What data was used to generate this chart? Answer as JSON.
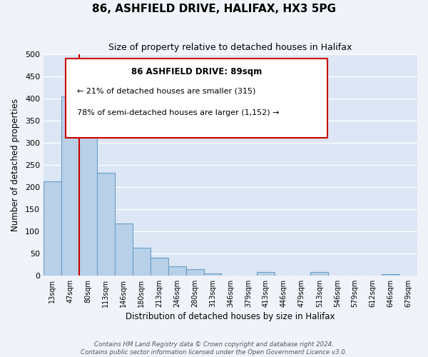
{
  "title": "86, ASHFIELD DRIVE, HALIFAX, HX3 5PG",
  "subtitle": "Size of property relative to detached houses in Halifax",
  "xlabel": "Distribution of detached houses by size in Halifax",
  "ylabel": "Number of detached properties",
  "bar_color": "#b8d0e8",
  "bar_edge_color": "#6aa0c8",
  "background_color": "#f0f4fa",
  "annotation_border_color": "#cc0000",
  "property_line_color": "#cc0000",
  "bin_labels": [
    "13sqm",
    "47sqm",
    "80sqm",
    "113sqm",
    "146sqm",
    "180sqm",
    "213sqm",
    "246sqm",
    "280sqm",
    "313sqm",
    "346sqm",
    "379sqm",
    "413sqm",
    "446sqm",
    "479sqm",
    "513sqm",
    "546sqm",
    "579sqm",
    "612sqm",
    "646sqm",
    "679sqm"
  ],
  "bar_heights": [
    213,
    405,
    368,
    231,
    118,
    63,
    40,
    21,
    14,
    5,
    0,
    0,
    7,
    0,
    0,
    7,
    0,
    0,
    0,
    3,
    0
  ],
  "ylim": [
    0,
    500
  ],
  "yticks": [
    0,
    50,
    100,
    150,
    200,
    250,
    300,
    350,
    400,
    450,
    500
  ],
  "annotation_line1": "86 ASHFIELD DRIVE: 89sqm",
  "annotation_line2": "← 21% of detached houses are smaller (315)",
  "annotation_line3": "78% of semi-detached houses are larger (1,152) →",
  "footer_line1": "Contains HM Land Registry data © Crown copyright and database right 2024.",
  "footer_line2": "Contains public sector information licensed under the Open Government Licence v3.0."
}
